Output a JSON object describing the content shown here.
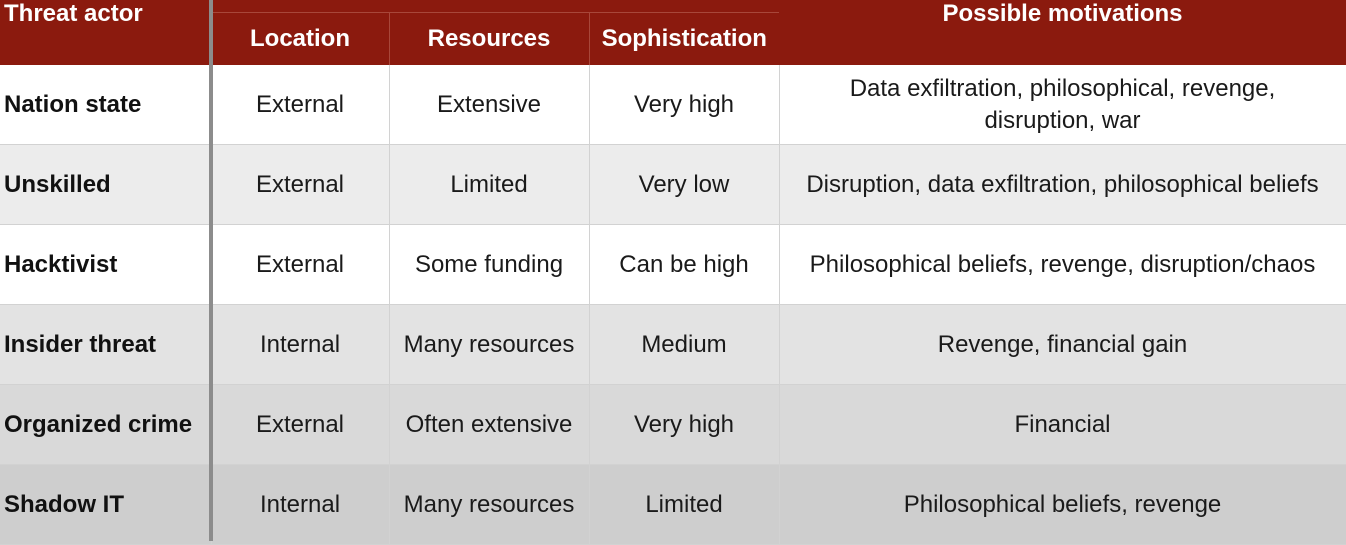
{
  "table": {
    "header": {
      "actor": "Threat actor",
      "location": "Location",
      "resources": "Resources",
      "sophistication": "Sophistication",
      "motivations": "Possible motivations"
    },
    "rows": [
      {
        "actor": "Nation state",
        "location": "External",
        "resources": "Extensive",
        "sophistication": "Very high",
        "motivations": "Data exfiltration, philosophical, revenge, disruption, war"
      },
      {
        "actor": "Unskilled",
        "location": "External",
        "resources": "Limited",
        "sophistication": "Very low",
        "motivations": "Disruption, data exfiltration, philosophical beliefs"
      },
      {
        "actor": "Hacktivist",
        "location": "External",
        "resources": "Some funding",
        "sophistication": "Can be high",
        "motivations": "Philosophical beliefs, revenge, disruption/chaos"
      },
      {
        "actor": "Insider threat",
        "location": "Internal",
        "resources": "Many resources",
        "sophistication": "Medium",
        "motivations": "Revenge, financial gain"
      },
      {
        "actor": "Organized crime",
        "location": "External",
        "resources": "Often extensive",
        "sophistication": "Very high",
        "motivations": "Financial"
      },
      {
        "actor": "Shadow IT",
        "location": "Internal",
        "resources": "Many resources",
        "sophistication": "Limited",
        "motivations": "Philosophical beliefs, revenge"
      }
    ]
  },
  "colors": {
    "header_background": "#8b1a0e",
    "header_text": "#ffffff"
  }
}
